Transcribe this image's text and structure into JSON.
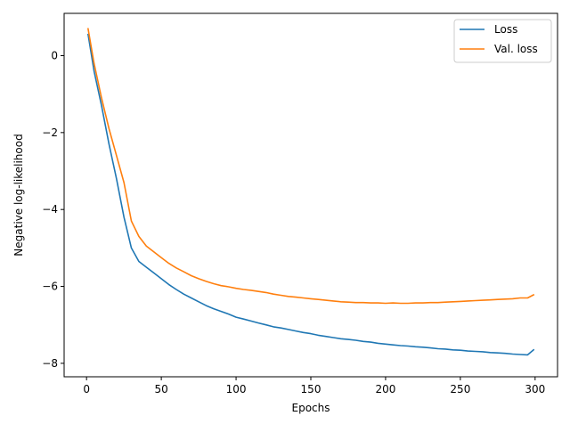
{
  "chart_data": {
    "type": "line",
    "xlabel": "Epochs",
    "ylabel": "Negative log-likelihood",
    "xlim": [
      -15,
      315
    ],
    "ylim": [
      -8.35,
      1.1
    ],
    "xticks": [
      0,
      50,
      100,
      150,
      200,
      250,
      300
    ],
    "yticks": [
      0,
      -2,
      -4,
      -6,
      -8
    ],
    "legend_position": "top-right",
    "grid": false,
    "series": [
      {
        "name": "Loss",
        "color": "#1f77b4",
        "x": [
          1,
          5,
          10,
          15,
          20,
          25,
          30,
          35,
          40,
          45,
          50,
          55,
          60,
          65,
          70,
          75,
          80,
          85,
          90,
          95,
          100,
          105,
          110,
          115,
          120,
          125,
          130,
          135,
          140,
          145,
          150,
          155,
          160,
          165,
          170,
          175,
          180,
          185,
          190,
          195,
          200,
          205,
          210,
          215,
          220,
          225,
          230,
          235,
          240,
          245,
          250,
          255,
          260,
          265,
          270,
          275,
          280,
          285,
          290,
          295,
          299
        ],
        "y": [
          0.55,
          -0.4,
          -1.3,
          -2.3,
          -3.2,
          -4.2,
          -5.0,
          -5.35,
          -5.5,
          -5.65,
          -5.8,
          -5.95,
          -6.08,
          -6.2,
          -6.3,
          -6.4,
          -6.5,
          -6.58,
          -6.65,
          -6.72,
          -6.8,
          -6.85,
          -6.9,
          -6.95,
          -7.0,
          -7.05,
          -7.08,
          -7.12,
          -7.16,
          -7.2,
          -7.23,
          -7.27,
          -7.3,
          -7.33,
          -7.36,
          -7.38,
          -7.4,
          -7.43,
          -7.45,
          -7.48,
          -7.5,
          -7.52,
          -7.54,
          -7.55,
          -7.57,
          -7.58,
          -7.6,
          -7.62,
          -7.63,
          -7.65,
          -7.66,
          -7.68,
          -7.69,
          -7.7,
          -7.72,
          -7.73,
          -7.74,
          -7.76,
          -7.77,
          -7.78,
          -7.65
        ]
      },
      {
        "name": "Val. loss",
        "color": "#ff7f0e",
        "x": [
          1,
          5,
          10,
          15,
          20,
          25,
          30,
          35,
          40,
          45,
          50,
          55,
          60,
          65,
          70,
          75,
          80,
          85,
          90,
          95,
          100,
          105,
          110,
          115,
          120,
          125,
          130,
          135,
          140,
          145,
          150,
          155,
          160,
          165,
          170,
          175,
          180,
          185,
          190,
          195,
          200,
          205,
          210,
          215,
          220,
          225,
          230,
          235,
          240,
          245,
          250,
          255,
          260,
          265,
          270,
          275,
          280,
          285,
          290,
          295,
          299
        ],
        "y": [
          0.7,
          -0.2,
          -1.1,
          -1.9,
          -2.6,
          -3.3,
          -4.3,
          -4.7,
          -4.95,
          -5.1,
          -5.25,
          -5.4,
          -5.52,
          -5.62,
          -5.72,
          -5.8,
          -5.87,
          -5.93,
          -5.98,
          -6.01,
          -6.05,
          -6.08,
          -6.1,
          -6.13,
          -6.16,
          -6.2,
          -6.23,
          -6.26,
          -6.28,
          -6.3,
          -6.32,
          -6.34,
          -6.36,
          -6.38,
          -6.4,
          -6.41,
          -6.42,
          -6.42,
          -6.43,
          -6.43,
          -6.44,
          -6.43,
          -6.44,
          -6.44,
          -6.43,
          -6.43,
          -6.42,
          -6.42,
          -6.41,
          -6.4,
          -6.39,
          -6.38,
          -6.37,
          -6.36,
          -6.35,
          -6.34,
          -6.33,
          -6.32,
          -6.3,
          -6.3,
          -6.22
        ]
      }
    ]
  }
}
